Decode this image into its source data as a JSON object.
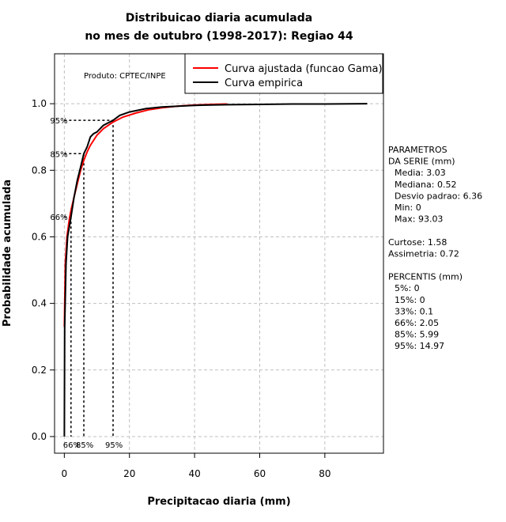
{
  "chart_data": {
    "type": "line",
    "title": [
      "Distribuicao diaria acumulada",
      "no mes de outubro (1998-2017): Regiao 44"
    ],
    "xlabel": "Precipitacao diaria (mm)",
    "ylabel": "Probabilidade acumulada",
    "xlim": [
      -3,
      98
    ],
    "ylim": [
      -0.05,
      1.15
    ],
    "xticks": [
      0,
      20,
      40,
      60,
      80
    ],
    "yticks": [
      0.0,
      0.2,
      0.4,
      0.6,
      0.8,
      1.0
    ],
    "ytick_labels": [
      "0.0",
      "0.2",
      "0.4",
      "0.6",
      "0.8",
      "1.0"
    ],
    "grid": true,
    "legend_position": "top-right",
    "series": [
      {
        "name": "Curva ajustada (funcao Gama)",
        "color": "#ff0000",
        "x": [
          0,
          0.3,
          0.8,
          1.5,
          2.05,
          3,
          4,
          5,
          5.99,
          7,
          8,
          10,
          12,
          14.97,
          18,
          22,
          26,
          30,
          35,
          40,
          45,
          50
        ],
        "y": [
          0.33,
          0.52,
          0.6,
          0.65,
          0.68,
          0.72,
          0.76,
          0.8,
          0.83,
          0.855,
          0.875,
          0.905,
          0.925,
          0.945,
          0.96,
          0.972,
          0.982,
          0.988,
          0.993,
          0.996,
          0.998,
          0.999
        ]
      },
      {
        "name": "Curva empirica",
        "color": "#000000",
        "x": [
          0,
          0.1,
          0.52,
          1,
          2.05,
          3,
          4,
          5,
          5.99,
          7,
          8,
          9,
          10,
          12,
          14.97,
          17,
          20,
          25,
          30,
          40,
          50,
          60,
          70,
          80,
          93.03
        ],
        "y": [
          0.0,
          0.33,
          0.52,
          0.6,
          0.66,
          0.72,
          0.77,
          0.81,
          0.85,
          0.87,
          0.9,
          0.91,
          0.915,
          0.935,
          0.95,
          0.965,
          0.975,
          0.985,
          0.99,
          0.995,
          0.997,
          0.998,
          0.999,
          0.999,
          1.0
        ]
      }
    ],
    "percentile_markers": [
      {
        "label": "66%",
        "x": 2.05,
        "y": 0.66
      },
      {
        "label": "85%",
        "x": 5.99,
        "y": 0.85
      },
      {
        "label": "95%",
        "x": 14.97,
        "y": 0.95
      }
    ],
    "annotation": "Produto: CPTEC/INPE"
  },
  "stats_panel": {
    "lines": [
      "PARAMETROS",
      "DA SERIE (mm)",
      "  Media: 3.03",
      "  Mediana: 0.52",
      "  Desvio padrao: 6.36",
      "  Min: 0",
      "  Max: 93.03",
      "",
      "Curtose: 1.58",
      "Assimetria: 0.72",
      "",
      "PERCENTIS (mm)",
      "  5%: 0",
      "  15%: 0",
      "  33%: 0.1",
      "  66%: 2.05",
      "  85%: 5.99",
      "  95%: 14.97"
    ]
  }
}
